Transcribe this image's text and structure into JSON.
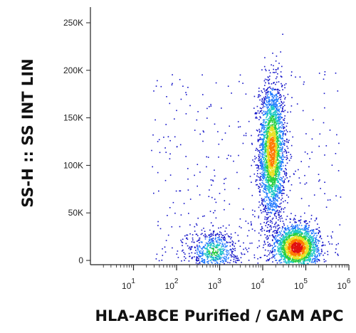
{
  "chart_data": {
    "type": "scatter",
    "plot_style": "flow-cytometry density dot plot (pseudocolor)",
    "title": "",
    "xlabel": "HLA-ABCE Purified / GAM APC",
    "ylabel": "SS-H :: SS INT LIN",
    "x_scale": "log",
    "xlim": [
      1,
      1000000
    ],
    "ylim": [
      0,
      262144
    ],
    "grid": false,
    "x_ticks": [
      {
        "value": 10,
        "base": "10",
        "exp": "1"
      },
      {
        "value": 100,
        "base": "10",
        "exp": "2"
      },
      {
        "value": 1000,
        "base": "10",
        "exp": "3"
      },
      {
        "value": 10000,
        "base": "10",
        "exp": "4"
      },
      {
        "value": 100000,
        "base": "10",
        "exp": "5"
      },
      {
        "value": 1000000,
        "base": "10",
        "exp": "6"
      }
    ],
    "y_ticks": [
      {
        "value": 0,
        "label": "0"
      },
      {
        "value": 50000,
        "label": "50K"
      },
      {
        "value": 100000,
        "label": "100K"
      },
      {
        "value": 150000,
        "label": "150K"
      },
      {
        "value": 200000,
        "label": "200K"
      },
      {
        "value": 250000,
        "label": "250K"
      }
    ],
    "density_colors": [
      "#1010c8",
      "#1e78ff",
      "#20c8c8",
      "#28d040",
      "#e8e020",
      "#ff7800",
      "#e01010"
    ],
    "populations": [
      {
        "center_x": 16000,
        "center_y": 115000,
        "spread_log_x": 0.15,
        "spread_y": 36000,
        "relative_density": "high"
      },
      {
        "center_x": 60000,
        "center_y": 14000,
        "spread_log_x": 0.25,
        "spread_y": 11000,
        "relative_density": "very high"
      },
      {
        "center_x": 700,
        "center_y": 10000,
        "spread_log_x": 0.3,
        "spread_y": 12000,
        "relative_density": "low"
      }
    ]
  }
}
